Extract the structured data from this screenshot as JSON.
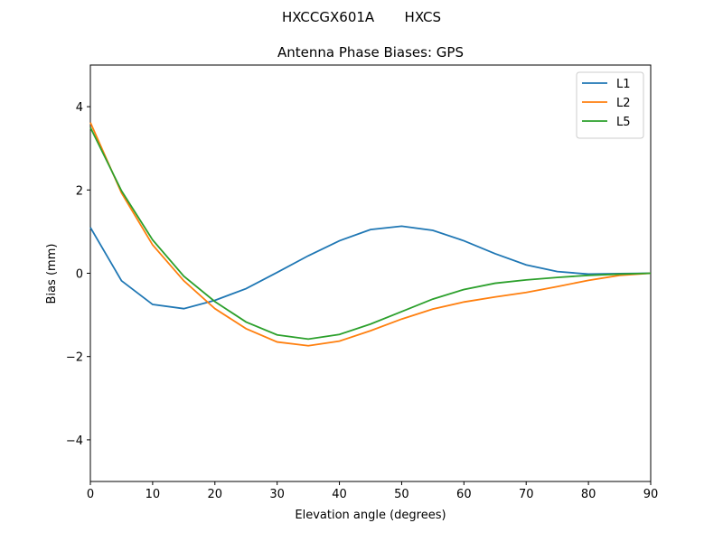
{
  "chart_data": {
    "type": "line",
    "suptitle": "HXCCGX601A       HXCS",
    "title": "Antenna Phase Biases: GPS",
    "x_label": "Elevation angle (degrees)",
    "y_label": "Bias (mm)",
    "x": [
      0,
      5,
      10,
      15,
      20,
      25,
      30,
      35,
      40,
      45,
      50,
      55,
      60,
      65,
      70,
      75,
      80,
      85,
      90
    ],
    "series": [
      {
        "name": "L1",
        "color": "#1f77b4",
        "values": [
          1.1,
          -0.18,
          -0.75,
          -0.85,
          -0.65,
          -0.37,
          0.02,
          0.42,
          0.78,
          1.05,
          1.13,
          1.03,
          0.78,
          0.47,
          0.2,
          0.04,
          -0.02,
          -0.01,
          0
        ]
      },
      {
        "name": "L2",
        "color": "#ff7f0e",
        "values": [
          3.62,
          1.93,
          0.68,
          -0.18,
          -0.85,
          -1.33,
          -1.65,
          -1.74,
          -1.63,
          -1.38,
          -1.1,
          -0.86,
          -0.69,
          -0.57,
          -0.46,
          -0.32,
          -0.17,
          -0.05,
          0
        ]
      },
      {
        "name": "L5",
        "color": "#2ca02c",
        "values": [
          3.5,
          1.98,
          0.8,
          -0.07,
          -0.68,
          -1.17,
          -1.48,
          -1.58,
          -1.47,
          -1.22,
          -0.92,
          -0.62,
          -0.39,
          -0.24,
          -0.16,
          -0.1,
          -0.05,
          -0.02,
          0
        ]
      }
    ],
    "xlim": [
      0,
      90
    ],
    "xticks": [
      0,
      10,
      20,
      30,
      40,
      50,
      60,
      70,
      80,
      90
    ],
    "ylim": [
      -5,
      5
    ],
    "yticks": [
      {
        "value": -4,
        "label": "−4"
      },
      {
        "value": -2,
        "label": "−2"
      },
      0,
      2,
      4
    ],
    "grid": false,
    "legend": "upper right"
  }
}
